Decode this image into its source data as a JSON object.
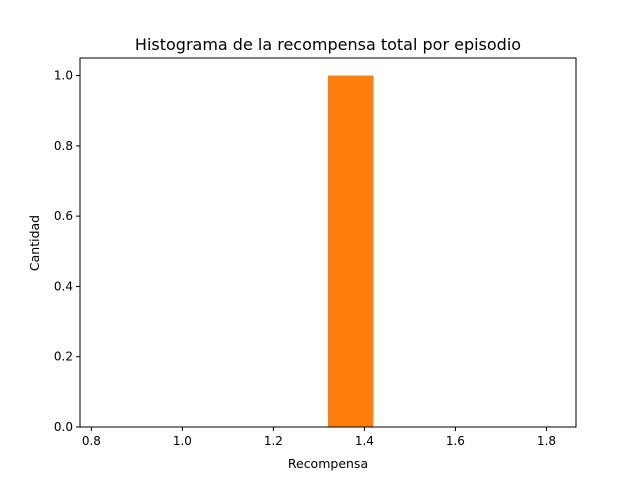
{
  "chart_data": {
    "type": "bar",
    "title": "Histograma de la recompensa total por episodio",
    "xlabel": "Recompensa",
    "ylabel": "Cantidad",
    "xlim": [
      0.775,
      1.865
    ],
    "ylim": [
      0.0,
      1.05
    ],
    "x_ticks": [
      "0.8",
      "1.0",
      "1.2",
      "1.4",
      "1.6",
      "1.8"
    ],
    "y_ticks": [
      "0.0",
      "0.2",
      "0.4",
      "0.6",
      "0.8",
      "1.0"
    ],
    "bars": [
      {
        "x_start": 1.32,
        "x_end": 1.42,
        "value": 1.0
      }
    ],
    "bar_color": "#ff7f0e",
    "grid": false
  }
}
